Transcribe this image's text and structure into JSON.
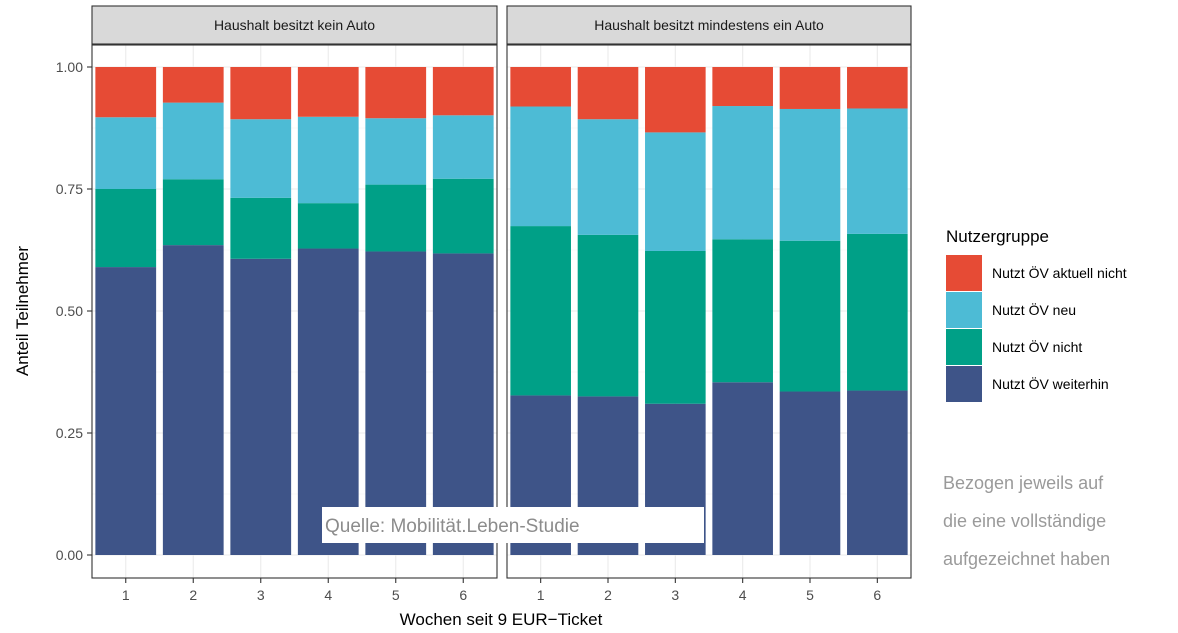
{
  "chart_data": {
    "type": "bar",
    "stacked": true,
    "xlabel": "Wochen seit 9 EUR−Ticket",
    "ylabel": "Anteil Teilnehmer",
    "ylim": [
      0,
      1
    ],
    "yticks": [
      "0.00",
      "0.25",
      "0.50",
      "0.75",
      "1.00"
    ],
    "categories": [
      "1",
      "2",
      "3",
      "4",
      "5",
      "6"
    ],
    "grid": true,
    "legend": {
      "title": "Nutzergruppe",
      "position": "right",
      "entries": [
        "Nutzt ÖV aktuell nicht",
        "Nutzt ÖV neu",
        "Nutzt ÖV nicht",
        "Nutzt ÖV weiterhin"
      ]
    },
    "colors": {
      "Nutzt ÖV weiterhin": "#3e5488",
      "Nutzt ÖV nicht": "#00a087",
      "Nutzt ÖV neu": "#4dbbd5",
      "Nutzt ÖV aktuell nicht": "#e64b35"
    },
    "panels": [
      {
        "title": "Haushalt besitzt kein Auto",
        "series": [
          {
            "name": "Nutzt ÖV weiterhin",
            "values": [
              0.59,
              0.635,
              0.607,
              0.628,
              0.622,
              0.618
            ]
          },
          {
            "name": "Nutzt ÖV nicht",
            "values": [
              0.16,
              0.135,
              0.125,
              0.093,
              0.137,
              0.153
            ]
          },
          {
            "name": "Nutzt ÖV neu",
            "values": [
              0.147,
              0.157,
              0.161,
              0.177,
              0.136,
              0.13
            ]
          },
          {
            "name": "Nutzt ÖV aktuell nicht",
            "values": [
              0.103,
              0.073,
              0.107,
              0.102,
              0.105,
              0.099
            ]
          }
        ]
      },
      {
        "title": "Haushalt besitzt mindestens ein Auto",
        "series": [
          {
            "name": "Nutzt ÖV weiterhin",
            "values": [
              0.327,
              0.325,
              0.31,
              0.354,
              0.335,
              0.337
            ]
          },
          {
            "name": "Nutzt ÖV nicht",
            "values": [
              0.347,
              0.331,
              0.313,
              0.293,
              0.309,
              0.321
            ]
          },
          {
            "name": "Nutzt ÖV neu",
            "values": [
              0.245,
              0.237,
              0.243,
              0.273,
              0.27,
              0.257
            ]
          },
          {
            "name": "Nutzt ÖV aktuell nicht",
            "values": [
              0.081,
              0.107,
              0.134,
              0.08,
              0.086,
              0.085
            ]
          }
        ]
      }
    ],
    "annotations": {
      "source": "Quelle: Mobilität.Leben-Studie",
      "note_lines": [
        "Bezogen jeweils auf",
        "die eine vollständige",
        "aufgezeichnet haben"
      ]
    }
  }
}
